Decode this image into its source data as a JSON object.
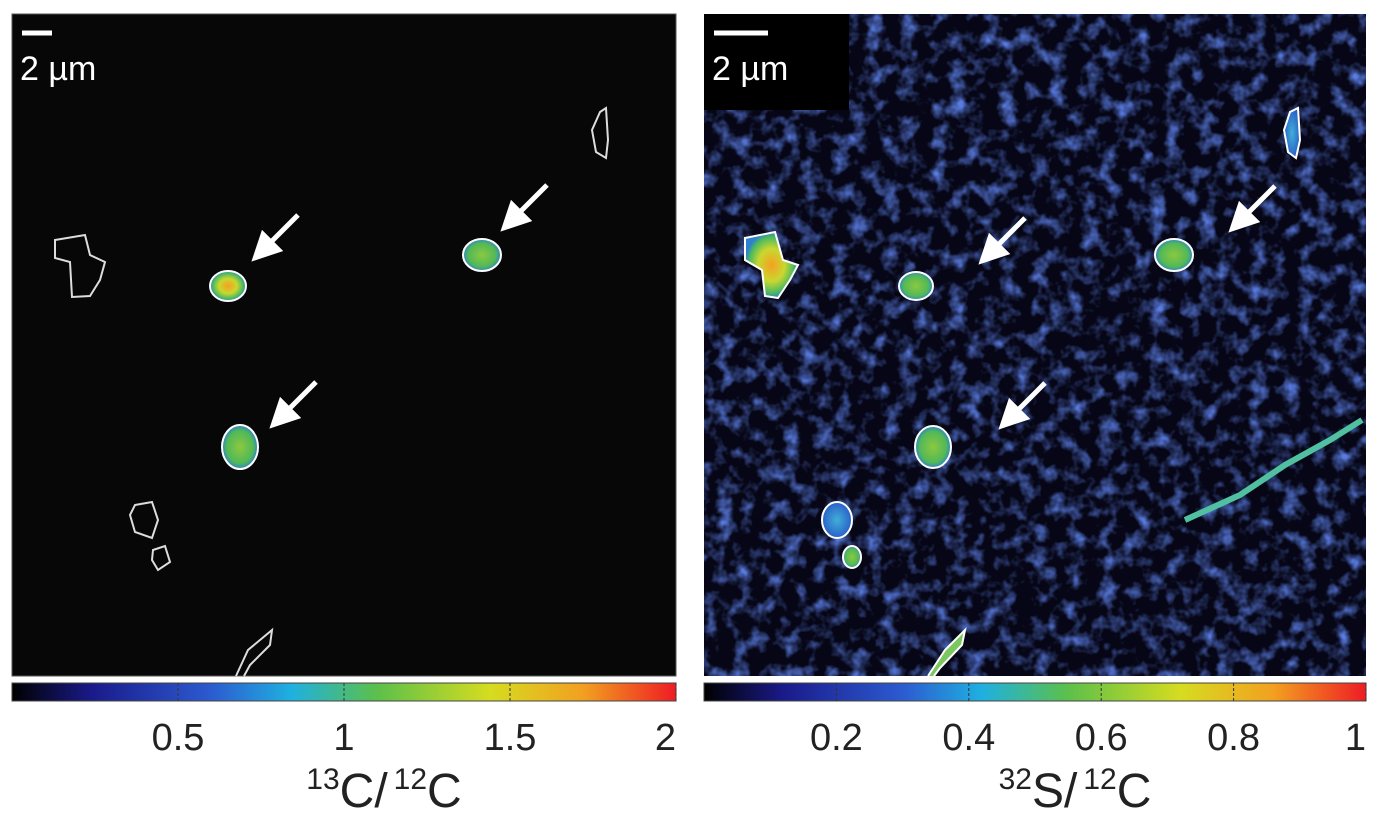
{
  "panels": [
    {
      "scale_bar": "2 µm",
      "colorbar": {
        "range": [
          0,
          2
        ],
        "ticks": [
          0.5,
          1,
          1.5,
          2
        ]
      },
      "label": {
        "iso1": "13",
        "el1": "C/",
        "iso2": "12",
        "el2": "C"
      }
    },
    {
      "scale_bar": "2 µm",
      "colorbar": {
        "range": [
          0,
          1
        ],
        "ticks": [
          0.2,
          0.4,
          0.6,
          0.8,
          1
        ]
      },
      "label": {
        "iso1": "32",
        "el1": "S/",
        "iso2": "12",
        "el2": "C"
      }
    }
  ]
}
